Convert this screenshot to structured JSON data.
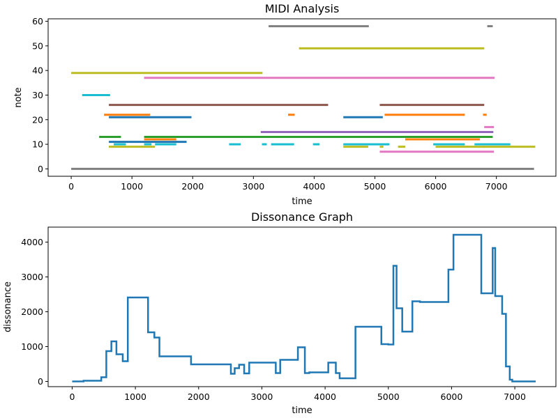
{
  "chart_data": [
    {
      "type": "gantt",
      "title": "MIDI Analysis",
      "xlabel": "time",
      "ylabel": "note",
      "xlim": [
        -380,
        7980
      ],
      "ylim": [
        -3,
        61
      ],
      "xticks": [
        0,
        1000,
        2000,
        3000,
        4000,
        5000,
        6000,
        7000
      ],
      "yticks": [
        0,
        10,
        20,
        30,
        40,
        50,
        60
      ],
      "segments": [
        {
          "x0": 0,
          "x1": 7620,
          "y": 0,
          "color": "#7f7f7f"
        },
        {
          "x0": 0,
          "x1": 3150,
          "y": 39,
          "color": "#bcbd22"
        },
        {
          "x0": 180,
          "x1": 640,
          "y": 30,
          "color": "#17becf"
        },
        {
          "x0": 460,
          "x1": 820,
          "y": 13,
          "color": "#2ca02c"
        },
        {
          "x0": 540,
          "x1": 1300,
          "y": 22,
          "color": "#ff7f0e"
        },
        {
          "x0": 620,
          "x1": 4230,
          "y": 26,
          "color": "#8c564b"
        },
        {
          "x0": 620,
          "x1": 1980,
          "y": 21,
          "color": "#1f77b4"
        },
        {
          "x0": 620,
          "x1": 1900,
          "y": 11,
          "color": "#1f77b4"
        },
        {
          "x0": 620,
          "x1": 1380,
          "y": 9,
          "color": "#bcbd22"
        },
        {
          "x0": 700,
          "x1": 900,
          "y": 10,
          "color": "#17becf"
        },
        {
          "x0": 1200,
          "x1": 6970,
          "y": 37,
          "color": "#e377c2"
        },
        {
          "x0": 1200,
          "x1": 6940,
          "y": 13,
          "color": "#2ca02c"
        },
        {
          "x0": 1200,
          "x1": 1730,
          "y": 12,
          "color": "#ff7f0e"
        },
        {
          "x0": 1200,
          "x1": 1320,
          "y": 10,
          "color": "#17becf"
        },
        {
          "x0": 1380,
          "x1": 1730,
          "y": 10,
          "color": "#17becf"
        },
        {
          "x0": 2600,
          "x1": 2790,
          "y": 10,
          "color": "#17becf"
        },
        {
          "x0": 3120,
          "x1": 6950,
          "y": 15,
          "color": "#9467bd"
        },
        {
          "x0": 3140,
          "x1": 3220,
          "y": 10,
          "color": "#17becf"
        },
        {
          "x0": 3290,
          "x1": 3670,
          "y": 10,
          "color": "#17becf"
        },
        {
          "x0": 3250,
          "x1": 4900,
          "y": 58,
          "color": "#7f7f7f"
        },
        {
          "x0": 3750,
          "x1": 6800,
          "y": 49,
          "color": "#bcbd22"
        },
        {
          "x0": 3570,
          "x1": 3680,
          "y": 22,
          "color": "#ff7f0e"
        },
        {
          "x0": 3980,
          "x1": 4090,
          "y": 10,
          "color": "#17becf"
        },
        {
          "x0": 4480,
          "x1": 5130,
          "y": 21,
          "color": "#1f77b4"
        },
        {
          "x0": 4480,
          "x1": 5220,
          "y": 10,
          "color": "#17becf"
        },
        {
          "x0": 4480,
          "x1": 4890,
          "y": 9,
          "color": "#bcbd22"
        },
        {
          "x0": 5080,
          "x1": 6800,
          "y": 26,
          "color": "#8c564b"
        },
        {
          "x0": 5160,
          "x1": 6480,
          "y": 22,
          "color": "#ff7f0e"
        },
        {
          "x0": 5080,
          "x1": 5140,
          "y": 9,
          "color": "#bcbd22"
        },
        {
          "x0": 5080,
          "x1": 6960,
          "y": 7,
          "color": "#e377c2"
        },
        {
          "x0": 5200,
          "x1": 5240,
          "y": 10,
          "color": "#17becf"
        },
        {
          "x0": 5380,
          "x1": 5500,
          "y": 9,
          "color": "#bcbd22"
        },
        {
          "x0": 5500,
          "x1": 6730,
          "y": 12,
          "color": "#ff7f0e"
        },
        {
          "x0": 5960,
          "x1": 6480,
          "y": 10,
          "color": "#17becf"
        },
        {
          "x0": 6000,
          "x1": 6800,
          "y": 9,
          "color": "#bcbd22"
        },
        {
          "x0": 6640,
          "x1": 7230,
          "y": 10,
          "color": "#17becf"
        },
        {
          "x0": 6780,
          "x1": 7640,
          "y": 9,
          "color": "#bcbd22"
        },
        {
          "x0": 6780,
          "x1": 6840,
          "y": 22,
          "color": "#ff7f0e"
        },
        {
          "x0": 6800,
          "x1": 6960,
          "y": 17,
          "color": "#e377c2"
        },
        {
          "x0": 6850,
          "x1": 6940,
          "y": 58,
          "color": "#7f7f7f"
        }
      ]
    },
    {
      "type": "line",
      "title": "Dissonance Graph",
      "xlabel": "time",
      "ylabel": "dissonance",
      "xlim": [
        -380,
        7650
      ],
      "ylim": [
        -150,
        4430
      ],
      "xticks": [
        0,
        1000,
        2000,
        3000,
        4000,
        5000,
        6000,
        7000
      ],
      "yticks": [
        0,
        1000,
        2000,
        3000,
        4000
      ],
      "step": "post",
      "color": "#1f77b4",
      "x": [
        0,
        180,
        460,
        540,
        620,
        700,
        800,
        880,
        1200,
        1300,
        1380,
        1810,
        1880,
        2510,
        2570,
        2640,
        2720,
        2800,
        3130,
        3220,
        3290,
        3570,
        3680,
        3750,
        4050,
        4170,
        4230,
        4480,
        4890,
        5000,
        5080,
        5130,
        5220,
        5380,
        5500,
        5950,
        6030,
        6470,
        6650,
        6690,
        6800,
        6860,
        6920,
        6960,
        7330
      ],
      "y": [
        0,
        20,
        120,
        870,
        1150,
        780,
        580,
        2410,
        1410,
        1260,
        720,
        720,
        490,
        220,
        380,
        480,
        230,
        540,
        540,
        240,
        620,
        980,
        240,
        260,
        540,
        240,
        90,
        1570,
        1070,
        1060,
        3320,
        2100,
        1430,
        2300,
        2280,
        3210,
        4210,
        2530,
        3830,
        2450,
        1940,
        430,
        50,
        0,
        0
      ]
    }
  ]
}
